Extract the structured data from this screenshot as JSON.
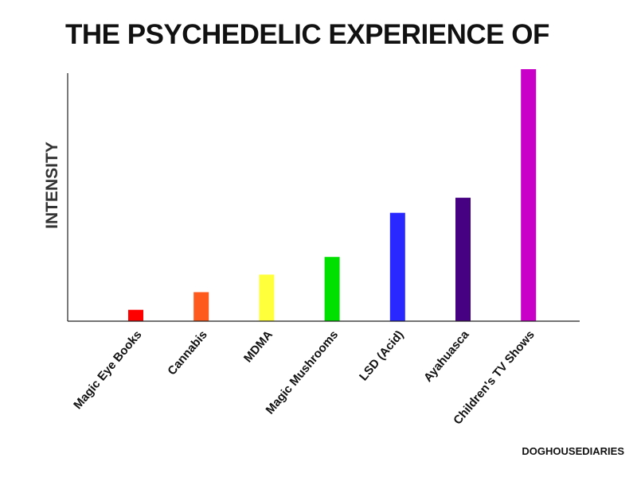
{
  "title": "THE PSYCHEDELIC EXPERIENCE OF",
  "credit": "DOGHOUSEDIARIES",
  "chart_data": {
    "type": "bar",
    "title": "THE PSYCHEDELIC EXPERIENCE OF",
    "xlabel": "",
    "ylabel": "INTENSITY",
    "ylim": [
      0,
      100
    ],
    "grid": false,
    "legend": "none",
    "y_tick_labels": false,
    "categories": [
      "Magic Eye Books",
      "Cannabis",
      "MDMA",
      "Magic Mushrooms",
      "LSD (Acid)",
      "Ayahuasca",
      "Children's TV Shows"
    ],
    "values": [
      4.5,
      11.5,
      18.5,
      25.5,
      43,
      49,
      100
    ],
    "colors": [
      "#ff0000",
      "#ff5a1e",
      "#ffff3c",
      "#00e000",
      "#2828ff",
      "#460082",
      "#c800c8"
    ]
  }
}
